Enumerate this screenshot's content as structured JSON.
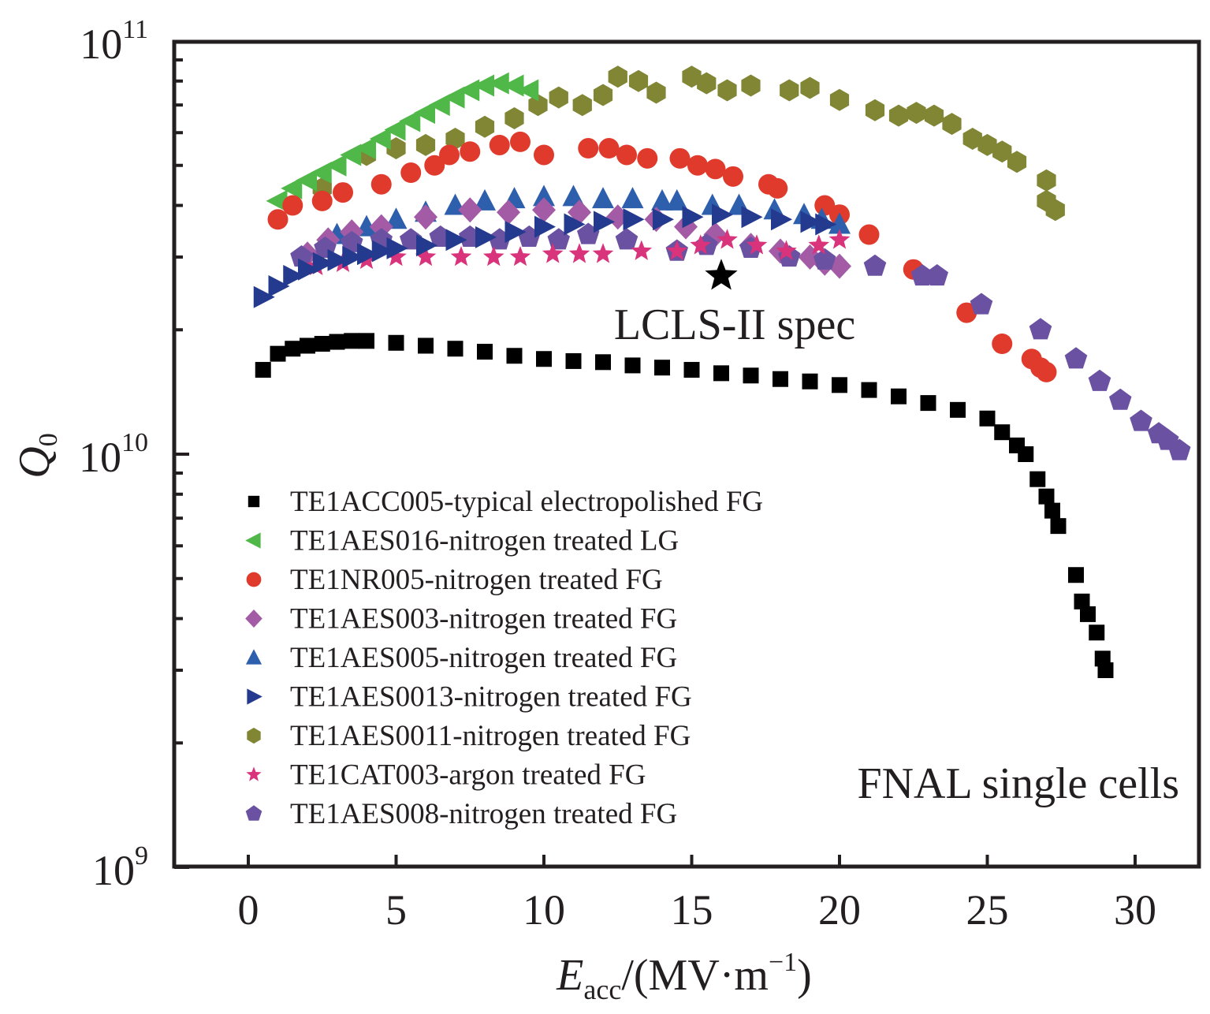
{
  "chart_data": {
    "type": "scatter",
    "title": "",
    "xlabel": {
      "main": "E",
      "sub": "acc",
      "rest": "/(MV·m",
      "sup": "−1",
      "close": ")"
    },
    "ylabel": {
      "main": "Q",
      "sub": "0"
    },
    "xlim": [
      -2.5,
      32.5
    ],
    "ylim": [
      1000000000.0,
      100000000000.0
    ],
    "yscale": "log",
    "grid": false,
    "x_ticks": [
      0,
      5,
      10,
      15,
      20,
      25,
      30
    ],
    "x_tick_labels": [
      "0",
      "5",
      "10",
      "15",
      "20",
      "25",
      "30"
    ],
    "y_ticks": [
      {
        "value": 100000000000.0,
        "base": "10",
        "exp": "11"
      },
      {
        "value": 10000000000.0,
        "base": "10",
        "exp": "10"
      },
      {
        "value": 1000000000.0,
        "base": "10",
        "exp": "9"
      }
    ],
    "legend_position": "bottom-left",
    "annotations": [
      {
        "text": "LCLS-II spec",
        "marker": "star",
        "x": 16,
        "y": 27000000000.0
      },
      {
        "text": "FNAL single cells",
        "position": "bottom-right"
      }
    ],
    "series": [
      {
        "name": "TE1ACC005-typical electropolished FG",
        "marker": "square",
        "color": "#000000",
        "x": [
          0.5,
          1,
          1.5,
          2,
          2.5,
          3,
          3.5,
          4,
          5,
          6,
          7,
          8,
          9,
          10,
          11,
          12,
          13,
          14,
          15,
          16,
          17,
          18,
          19,
          20,
          21,
          22,
          23,
          24,
          25,
          25.5,
          26,
          26.3,
          26.7,
          27,
          27.2,
          27.4,
          28,
          28.2,
          28.4,
          28.7,
          28.9,
          29
        ],
        "y": [
          16000000000.0,
          17500000000.0,
          18000000000.0,
          18300000000.0,
          18500000000.0,
          18700000000.0,
          18800000000.0,
          18800000000.0,
          18600000000.0,
          18300000000.0,
          18000000000.0,
          17700000000.0,
          17300000000.0,
          17000000000.0,
          16800000000.0,
          16700000000.0,
          16400000000.0,
          16200000000.0,
          16000000000.0,
          15700000000.0,
          15500000000.0,
          15200000000.0,
          15000000000.0,
          14700000000.0,
          14300000000.0,
          13800000000.0,
          13300000000.0,
          12800000000.0,
          12200000000.0,
          11300000000.0,
          10500000000.0,
          10000000000.0,
          8700000000.0,
          7900000000.0,
          7300000000.0,
          6700000000.0,
          5100000000.0,
          4400000000.0,
          4100000000.0,
          3700000000.0,
          3200000000.0,
          3000000000.0
        ]
      },
      {
        "name": "TE1AES016-nitrogen treated LG",
        "marker": "triangle-left",
        "color": "#4fb848",
        "x": [
          1,
          1.5,
          2,
          2.5,
          3,
          3.5,
          4,
          4.5,
          5,
          5.5,
          6,
          6.5,
          7,
          7.5,
          8,
          8.5,
          9,
          9.5
        ],
        "y": [
          41000000000.0,
          44000000000.0,
          46000000000.0,
          48000000000.0,
          50000000000.0,
          53000000000.0,
          55000000000.0,
          58000000000.0,
          61000000000.0,
          64000000000.0,
          67000000000.0,
          70000000000.0,
          73000000000.0,
          76000000000.0,
          78000000000.0,
          79000000000.0,
          78000000000.0,
          76000000000.0
        ]
      },
      {
        "name": "TE1NR005-nitrogen treated FG",
        "marker": "circle",
        "color": "#e03a2c",
        "x": [
          1,
          1.5,
          2.5,
          3.2,
          4.5,
          5.5,
          6.3,
          6.8,
          7.5,
          8.5,
          9.2,
          10,
          11.5,
          12.2,
          12.8,
          13.5,
          14.6,
          15.2,
          15.8,
          16.4,
          17.6,
          17.9,
          19.5,
          20,
          21,
          22.5,
          24.3,
          25.5,
          26.5,
          26.8,
          27
        ],
        "y": [
          37000000000.0,
          40000000000.0,
          41000000000.0,
          43000000000.0,
          45000000000.0,
          48000000000.0,
          50000000000.0,
          53000000000.0,
          54000000000.0,
          56000000000.0,
          57000000000.0,
          53000000000.0,
          55000000000.0,
          55000000000.0,
          53000000000.0,
          52000000000.0,
          52000000000.0,
          50000000000.0,
          49000000000.0,
          47000000000.0,
          45000000000.0,
          44000000000.0,
          40000000000.0,
          38000000000.0,
          34000000000.0,
          28000000000.0,
          22000000000.0,
          18500000000.0,
          17000000000.0,
          16200000000.0,
          15800000000.0
        ]
      },
      {
        "name": "TE1AES003-nitrogen treated FG",
        "marker": "diamond",
        "color": "#a45ba6",
        "x": [
          2,
          2.7,
          3.5,
          4.5,
          6,
          7.5,
          8.8,
          10,
          11.2,
          12.5,
          13.8,
          14.8,
          15.8,
          17,
          18,
          19,
          19.5,
          20
        ],
        "y": [
          30500000000.0,
          33000000000.0,
          34500000000.0,
          35500000000.0,
          37500000000.0,
          39000000000.0,
          38500000000.0,
          39000000000.0,
          38500000000.0,
          37500000000.0,
          37000000000.0,
          35500000000.0,
          34000000000.0,
          32000000000.0,
          31000000000.0,
          30000000000.0,
          29000000000.0,
          28500000000.0
        ]
      },
      {
        "name": "TE1AES005-nitrogen treated FG",
        "marker": "triangle-up",
        "color": "#2d5fad",
        "x": [
          3,
          4,
          5,
          6,
          7,
          8,
          9,
          10,
          11,
          12,
          13,
          14,
          14.5,
          15.7,
          16.6,
          17.8,
          18.8,
          19.4,
          20
        ],
        "y": [
          34000000000.0,
          35500000000.0,
          37000000000.0,
          38500000000.0,
          40000000000.0,
          41000000000.0,
          41500000000.0,
          42000000000.0,
          42000000000.0,
          41500000000.0,
          41500000000.0,
          41000000000.0,
          41000000000.0,
          40000000000.0,
          40000000000.0,
          39000000000.0,
          38000000000.0,
          37000000000.0,
          36000000000.0
        ]
      },
      {
        "name": "TE1AES0013-nitrogen treated FG",
        "marker": "triangle-right",
        "color": "#233a8f",
        "x": [
          0.5,
          1,
          1.5,
          2,
          2.5,
          3,
          3.5,
          4,
          4.5,
          5,
          6,
          7,
          8,
          9,
          10,
          11,
          12,
          13,
          14,
          15,
          16,
          17,
          18,
          19,
          19.5
        ],
        "y": [
          24000000000.0,
          25500000000.0,
          27000000000.0,
          28000000000.0,
          29000000000.0,
          29500000000.0,
          30000000000.0,
          30500000000.0,
          31000000000.0,
          31500000000.0,
          32000000000.0,
          33000000000.0,
          33500000000.0,
          34500000000.0,
          35500000000.0,
          36000000000.0,
          36500000000.0,
          37000000000.0,
          37000000000.0,
          37500000000.0,
          38000000000.0,
          37500000000.0,
          37000000000.0,
          36500000000.0,
          36000000000.0
        ]
      },
      {
        "name": "TE1AES0011-nitrogen treated FG",
        "marker": "hexagon",
        "color": "#808634",
        "x": [
          2.5,
          4,
          5,
          6,
          7,
          8,
          9,
          9.8,
          10.5,
          11.3,
          12,
          12.5,
          13.2,
          13.8,
          15,
          15.5,
          16.2,
          17,
          18.3,
          19,
          20,
          21.2,
          22,
          22.6,
          23.2,
          23.8,
          24.5,
          25,
          25.5,
          26,
          27,
          27,
          27.3
        ],
        "y": [
          44000000000.0,
          53000000000.0,
          55000000000.0,
          56000000000.0,
          58000000000.0,
          62000000000.0,
          65000000000.0,
          70000000000.0,
          73000000000.0,
          70000000000.0,
          74000000000.0,
          82000000000.0,
          80000000000.0,
          75000000000.0,
          82000000000.0,
          79000000000.0,
          76000000000.0,
          78000000000.0,
          76000000000.0,
          77000000000.0,
          72000000000.0,
          68000000000.0,
          66000000000.0,
          67000000000.0,
          66000000000.0,
          63000000000.0,
          58000000000.0,
          56000000000.0,
          54000000000.0,
          51000000000.0,
          46000000000.0,
          41000000000.0,
          39000000000.0
        ]
      },
      {
        "name": "TE1CAT003-argon treated FG",
        "marker": "star",
        "color": "#d9337b",
        "x": [
          2.3,
          3.2,
          4,
          5,
          6,
          7.2,
          8.3,
          9.2,
          10.3,
          11.2,
          12,
          13.3,
          14.5,
          15.3,
          16.2,
          17.2,
          18.2,
          19.3,
          20
        ],
        "y": [
          28500000000.0,
          29000000000.0,
          29500000000.0,
          30000000000.0,
          30000000000.0,
          30000000000.0,
          30000000000.0,
          30000000000.0,
          30500000000.0,
          30500000000.0,
          30500000000.0,
          31000000000.0,
          31000000000.0,
          32000000000.0,
          33000000000.0,
          32000000000.0,
          31000000000.0,
          32000000000.0,
          33000000000.0
        ]
      },
      {
        "name": "TE1AES008-nitrogen treated FG",
        "marker": "pentagon",
        "color": "#6a51a2",
        "x": [
          1.8,
          2.6,
          3.5,
          4.5,
          5.5,
          6.5,
          7.5,
          8.5,
          9.5,
          10.5,
          11.5,
          12.8,
          14.5,
          15.5,
          17,
          18.3,
          19.5,
          21.2,
          22.8,
          23.3,
          24.8,
          26.8,
          28,
          28.8,
          29.5,
          30.2,
          30.8,
          31.1,
          31.5
        ],
        "y": [
          30000000000.0,
          31500000000.0,
          32500000000.0,
          33000000000.0,
          33000000000.0,
          33500000000.0,
          33500000000.0,
          33000000000.0,
          33500000000.0,
          33000000000.0,
          34000000000.0,
          33000000000.0,
          31000000000.0,
          32000000000.0,
          31500000000.0,
          30000000000.0,
          29500000000.0,
          28500000000.0,
          27000000000.0,
          27000000000.0,
          23000000000.0,
          20000000000.0,
          17000000000.0,
          15000000000.0,
          13500000000.0,
          12000000000.0,
          11200000000.0,
          10800000000.0,
          10200000000.0
        ]
      }
    ]
  }
}
